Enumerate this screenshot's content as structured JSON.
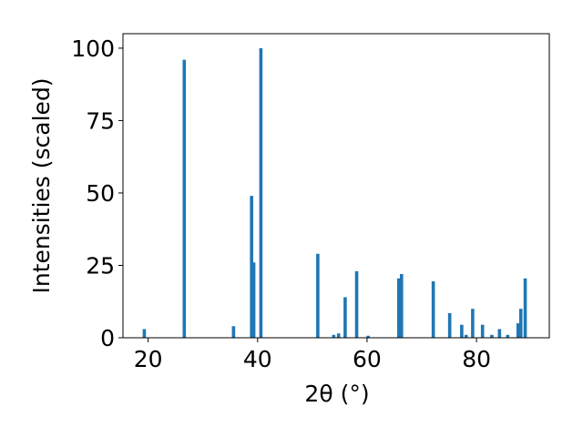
{
  "chart_data": {
    "type": "bar",
    "title": "",
    "xlabel": "2θ (°)",
    "ylabel": "Intensities (scaled)",
    "xlim": [
      15.4,
      93.3
    ],
    "ylim": [
      0,
      105
    ],
    "xticks": [
      20,
      40,
      60,
      80
    ],
    "yticks": [
      0,
      25,
      50,
      75,
      100
    ],
    "grid": false,
    "legend": "none",
    "bar_color": "#1f77b4",
    "bar_width_deg": 0.6,
    "x": [
      19.3,
      26.6,
      35.6,
      38.9,
      39.3,
      40.6,
      51.0,
      53.9,
      54.8,
      56.0,
      58.1,
      60.2,
      65.8,
      66.3,
      72.1,
      75.1,
      77.3,
      78.1,
      79.3,
      81.1,
      82.8,
      84.2,
      85.7,
      87.6,
      88.1,
      88.9
    ],
    "y": [
      3,
      96,
      4,
      49,
      26,
      100,
      29,
      1,
      1.5,
      14,
      23,
      0.7,
      20.5,
      22,
      19.5,
      8.5,
      4.5,
      1,
      10,
      4.5,
      1,
      3,
      1,
      5,
      10,
      20.5
    ]
  }
}
